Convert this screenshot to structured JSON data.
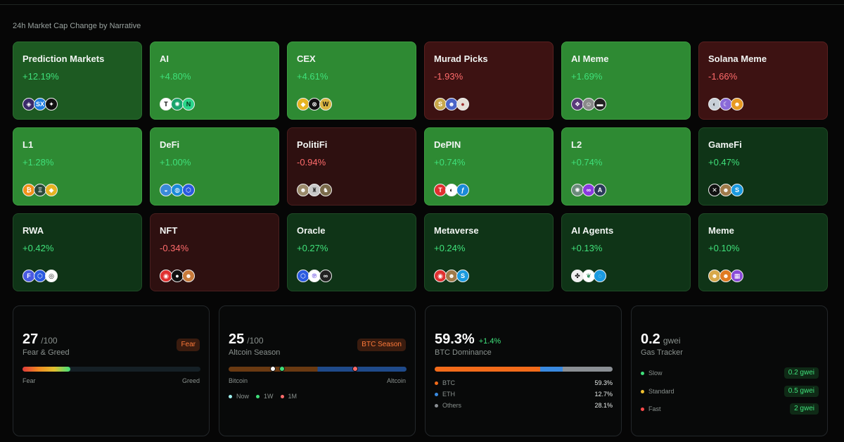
{
  "section_title": "24h Market Cap Change by Narrative",
  "narratives": [
    {
      "name": "Prediction Markets",
      "change": "+12.19%",
      "dir": "up",
      "tone": "pos-mid",
      "tokens": [
        {
          "icon": "polymarket-icon",
          "color": "#3a2a6a",
          "glyph": "◈"
        },
        {
          "icon": "sx-icon",
          "color": "#1f7de0",
          "glyph": "SX"
        },
        {
          "icon": "spark-icon",
          "color": "#111111",
          "glyph": "✦"
        }
      ]
    },
    {
      "name": "AI",
      "change": "+4.80%",
      "dir": "up",
      "tone": "pos-strong",
      "tokens": [
        {
          "icon": "t-icon",
          "color": "#ffffff",
          "glyph": "T",
          "fg": "#000"
        },
        {
          "icon": "globe-icon",
          "color": "#18a46c",
          "glyph": "✺"
        },
        {
          "icon": "n-icon",
          "color": "#2ad58a",
          "glyph": "N",
          "fg": "#06351f"
        }
      ]
    },
    {
      "name": "CEX",
      "change": "+4.61%",
      "dir": "up",
      "tone": "pos-strong",
      "tokens": [
        {
          "icon": "bnb-icon",
          "color": "#e6b422",
          "glyph": "◆"
        },
        {
          "icon": "okb-icon",
          "color": "#111111",
          "glyph": "⊗"
        },
        {
          "icon": "w-icon",
          "color": "#d9b640",
          "glyph": "W",
          "fg": "#111"
        }
      ]
    },
    {
      "name": "Murad Picks",
      "change": "-1.93%",
      "dir": "down",
      "tone": "neg",
      "tokens": [
        {
          "icon": "spx-icon",
          "color": "#c8a84a",
          "glyph": "S"
        },
        {
          "icon": "cat-icon",
          "color": "#4a64c8",
          "glyph": "☻"
        },
        {
          "icon": "dog-icon",
          "color": "#e6e0d8",
          "glyph": "●",
          "fg": "#a03030"
        }
      ]
    },
    {
      "name": "AI Meme",
      "change": "+1.69%",
      "dir": "up",
      "tone": "pos-strong",
      "tokens": [
        {
          "icon": "goat-icon",
          "color": "#5a3a7a",
          "glyph": "❖"
        },
        {
          "icon": "pepe-icon",
          "color": "#8a8a8a",
          "glyph": "☺"
        },
        {
          "icon": "dark-icon",
          "color": "#222222",
          "glyph": "▬"
        }
      ]
    },
    {
      "name": "Solana Meme",
      "change": "-1.66%",
      "dir": "down",
      "tone": "neg",
      "tokens": [
        {
          "icon": "wif-icon",
          "color": "#c8d0d8",
          "glyph": "◐",
          "fg": "#333"
        },
        {
          "icon": "moon-icon",
          "color": "#8a6ad8",
          "glyph": "☾"
        },
        {
          "icon": "bonk-icon",
          "color": "#e89a22",
          "glyph": "☻"
        }
      ]
    },
    {
      "name": "L1",
      "change": "+1.28%",
      "dir": "up",
      "tone": "pos-strong",
      "tokens": [
        {
          "icon": "bitcoin-icon",
          "color": "#f2921a",
          "glyph": "₿"
        },
        {
          "icon": "ethereum-icon",
          "color": "#2a4a3a",
          "glyph": "Ξ"
        },
        {
          "icon": "bnb-icon",
          "color": "#e6b422",
          "glyph": "◆"
        }
      ]
    },
    {
      "name": "DeFi",
      "change": "+1.00%",
      "dir": "up",
      "tone": "pos-strong",
      "tokens": [
        {
          "icon": "lido-icon",
          "color": "#3a8ad8",
          "glyph": "◒"
        },
        {
          "icon": "uni-icon",
          "color": "#1a8ad8",
          "glyph": "◍"
        },
        {
          "icon": "link-icon",
          "color": "#2a5ae0",
          "glyph": "⬡"
        }
      ]
    },
    {
      "name": "PolitiFi",
      "change": "-0.94%",
      "dir": "down",
      "tone": "neg-weak",
      "tokens": [
        {
          "icon": "trump-icon",
          "color": "#9a8a6a",
          "glyph": "☻"
        },
        {
          "icon": "maga-icon",
          "color": "#c8c8c8",
          "glyph": "♜",
          "fg": "#333"
        },
        {
          "icon": "eagle-icon",
          "color": "#7a6a4a",
          "glyph": "♞"
        }
      ]
    },
    {
      "name": "DePIN",
      "change": "+0.74%",
      "dir": "up",
      "tone": "pos-strong",
      "tokens": [
        {
          "icon": "t-icon",
          "color": "#e03030",
          "glyph": "T"
        },
        {
          "icon": "render-icon",
          "color": "#ffffff",
          "glyph": "◐",
          "fg": "#111"
        },
        {
          "icon": "fil-icon",
          "color": "#1a8ad8",
          "glyph": "ƒ"
        }
      ]
    },
    {
      "name": "L2",
      "change": "+0.74%",
      "dir": "up",
      "tone": "pos-strong",
      "tokens": [
        {
          "icon": "starburst-icon",
          "color": "#6a8a7a",
          "glyph": "✺"
        },
        {
          "icon": "polygon-icon",
          "color": "#8a3ae0",
          "glyph": "∞"
        },
        {
          "icon": "arb-icon",
          "color": "#2a3a5a",
          "glyph": "A"
        }
      ]
    },
    {
      "name": "GameFi",
      "change": "+0.47%",
      "dir": "up",
      "tone": "pos-weak",
      "tokens": [
        {
          "icon": "imx-icon",
          "color": "#111111",
          "glyph": "✕"
        },
        {
          "icon": "axie-icon",
          "color": "#a07a4a",
          "glyph": "☻"
        },
        {
          "icon": "sand-icon",
          "color": "#1a9ae0",
          "glyph": "S"
        }
      ]
    },
    {
      "name": "RWA",
      "change": "+0.42%",
      "dir": "up",
      "tone": "pos-weak",
      "tokens": [
        {
          "icon": "f-icon",
          "color": "#4a5ae0",
          "glyph": "F"
        },
        {
          "icon": "link-icon",
          "color": "#2a5ae0",
          "glyph": "⬡"
        },
        {
          "icon": "ondo-icon",
          "color": "#ffffff",
          "glyph": "◎",
          "fg": "#111"
        }
      ]
    },
    {
      "name": "NFT",
      "change": "-0.34%",
      "dir": "down",
      "tone": "neg-weak",
      "tokens": [
        {
          "icon": "ape-icon",
          "color": "#e03030",
          "glyph": "◉"
        },
        {
          "icon": "blur-icon",
          "color": "#111111",
          "glyph": "●"
        },
        {
          "icon": "bear-icon",
          "color": "#c87a3a",
          "glyph": "☻"
        }
      ]
    },
    {
      "name": "Oracle",
      "change": "+0.27%",
      "dir": "up",
      "tone": "pos-weak",
      "tokens": [
        {
          "icon": "link-icon",
          "color": "#2a5ae0",
          "glyph": "⬡"
        },
        {
          "icon": "pyth-icon",
          "color": "#ffffff",
          "glyph": "℗",
          "fg": "#5a3ae0"
        },
        {
          "icon": "band-icon",
          "color": "#222222",
          "glyph": "∞"
        }
      ]
    },
    {
      "name": "Metaverse",
      "change": "+0.24%",
      "dir": "up",
      "tone": "pos-weak",
      "tokens": [
        {
          "icon": "ape-icon",
          "color": "#e03030",
          "glyph": "◉"
        },
        {
          "icon": "axie-icon",
          "color": "#a07a4a",
          "glyph": "☻"
        },
        {
          "icon": "sand-icon",
          "color": "#1a9ae0",
          "glyph": "S"
        }
      ]
    },
    {
      "name": "AI Agents",
      "change": "+0.13%",
      "dir": "up",
      "tone": "pos-weak",
      "tokens": [
        {
          "icon": "virtual-icon",
          "color": "#f0f0f0",
          "glyph": "✤",
          "fg": "#111"
        },
        {
          "icon": "leaf-icon",
          "color": "#ffffff",
          "glyph": "❦",
          "fg": "#2a8a5a"
        },
        {
          "icon": "swirl-icon",
          "color": "#1a9ae0",
          "glyph": "◌"
        }
      ]
    },
    {
      "name": "Meme",
      "change": "+0.10%",
      "dir": "up",
      "tone": "pos-weak",
      "tokens": [
        {
          "icon": "doge-icon",
          "color": "#d8a84a",
          "glyph": "☻"
        },
        {
          "icon": "shib-icon",
          "color": "#e07a22",
          "glyph": "☻"
        },
        {
          "icon": "pixel-icon",
          "color": "#8a4ad8",
          "glyph": "▦"
        }
      ]
    }
  ],
  "fear_greed": {
    "value": "27",
    "suffix": "/100",
    "label": "Fear & Greed",
    "badge": "Fear",
    "left": "Fear",
    "right": "Greed",
    "level": 0.27
  },
  "altcoin": {
    "value": "25",
    "suffix": "/100",
    "label": "Altcoin Season",
    "badge": "BTC Season",
    "left": "Bitcoin",
    "right": "Altcoin",
    "markers": [
      {
        "name": "Now",
        "value": 0.25,
        "color": "#ffffff"
      },
      {
        "name": "1W",
        "value": 0.3,
        "color": "#3fe07a"
      },
      {
        "name": "1M",
        "value": 0.71,
        "color": "#ff6b6b"
      }
    ],
    "legend": [
      "Now",
      "1W",
      "1M"
    ]
  },
  "dominance": {
    "value": "59.3%",
    "delta": "+1.4%",
    "label": "BTC Dominance",
    "rows": [
      {
        "name": "BTC",
        "value": "59.3%",
        "color": "#f26b1a",
        "share": 59.3
      },
      {
        "name": "ETH",
        "value": "12.7%",
        "color": "#3a8ae0",
        "share": 12.7
      },
      {
        "name": "Others",
        "value": "28.1%",
        "color": "#8a8f94",
        "share": 28.1
      }
    ]
  },
  "gas": {
    "value": "0.2",
    "unit": "gwei",
    "label": "Gas Tracker",
    "rows": [
      {
        "name": "Slow",
        "value": "0.2 gwei",
        "color": "#3fe07a"
      },
      {
        "name": "Standard",
        "value": "0.5 gwei",
        "color": "#f0c030"
      },
      {
        "name": "Fast",
        "value": "2 gwei",
        "color": "#ff4a4a"
      }
    ]
  }
}
